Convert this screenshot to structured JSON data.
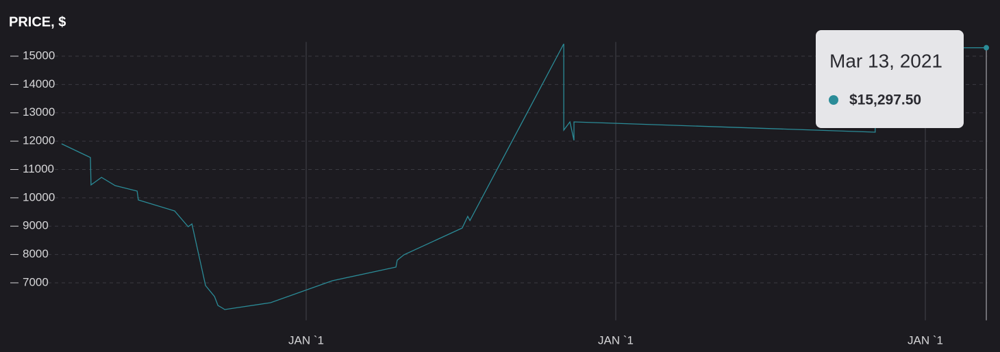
{
  "chart_data": {
    "type": "line",
    "title": "PRICE, $",
    "x": [
      2018.21,
      2018.303,
      2018.305,
      2018.339,
      2018.383,
      2018.454,
      2018.458,
      2018.575,
      2018.613,
      2018.619,
      2018.631,
      2018.675,
      2018.704,
      2018.715,
      2018.73,
      2018.737,
      2018.885,
      2019.084,
      2019.29,
      2019.294,
      2019.316,
      2019.504,
      2019.522,
      2019.529,
      2019.832,
      2019.832,
      2019.852,
      2019.865,
      2019.865,
      2020.838,
      2020.838,
      2021.197
    ],
    "values": [
      11906,
      11423,
      10456,
      10722,
      10432,
      10239,
      9924,
      9538,
      9054,
      8982,
      9079,
      6903,
      6517,
      6203,
      6106,
      6058,
      6299,
      7073,
      7556,
      7798,
      7991,
      8934,
      9344,
      9199,
      15435,
      12390,
      12680,
      12027,
      12680,
      12317,
      15290,
      15297.5
    ],
    "value_labels": [
      null,
      null,
      null,
      null,
      null,
      null,
      null,
      null,
      null,
      null,
      null,
      null,
      null,
      null,
      null,
      null,
      null,
      null,
      null,
      null,
      null,
      null,
      null,
      null,
      null,
      null,
      null,
      null,
      null,
      null,
      null,
      "$15,297.50"
    ],
    "color": "#2b8c98",
    "xlim": [
      2018.2,
      2021.2
    ],
    "xticks": [
      {
        "value": 2019,
        "label": "JAN `1"
      },
      {
        "value": 2020,
        "label": "JAN `1"
      },
      {
        "value": 2021,
        "label": "JAN `1"
      }
    ],
    "ylim": [
      5750,
      15500
    ],
    "yticks": [
      7000,
      8000,
      9000,
      10000,
      11000,
      12000,
      13000,
      14000,
      15000
    ],
    "grid": true,
    "tooltip": {
      "date": "Mar 13, 2021"
    }
  }
}
